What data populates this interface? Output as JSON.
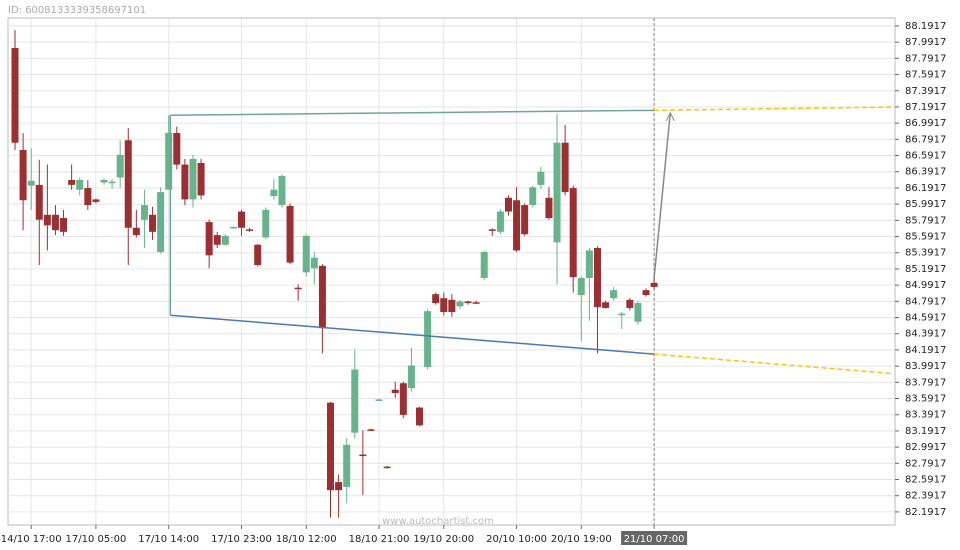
{
  "chart_data": {
    "type": "candlestick",
    "id_label": "ID: 6008133339358697101",
    "watermark": "www.autochartist.com",
    "up_color": "#66b38c",
    "down_color": "#9b2f32",
    "grid": true,
    "categories": [
      null,
      null,
      "14/10 17:00",
      null,
      null,
      null,
      null,
      null,
      null,
      null,
      "17/10 05:00",
      null,
      null,
      null,
      null,
      null,
      null,
      null,
      null,
      "17/10 14:00",
      null,
      null,
      null,
      null,
      null,
      null,
      null,
      null,
      "17/10 23:00",
      null,
      null,
      null,
      null,
      null,
      null,
      null,
      "18/10 12:00",
      null,
      null,
      null,
      null,
      null,
      null,
      null,
      null,
      "18/10 21:00",
      null,
      null,
      null,
      null,
      null,
      null,
      null,
      "19/10 20:00",
      null,
      null,
      null,
      null,
      null,
      null,
      null,
      null,
      "20/10 10:00",
      null,
      null,
      null,
      null,
      null,
      null,
      null,
      "20/10 19:00",
      null,
      null,
      null,
      null,
      null,
      null,
      null,
      null,
      "21/10 07:00"
    ],
    "open": [
      87.92,
      86.66,
      86.22,
      86.23,
      85.86,
      85.86,
      85.82,
      86.29,
      86.17,
      86.19,
      86.05,
      86.26,
      86.25,
      86.32,
      86.78,
      85.7,
      85.8,
      85.86,
      85.4,
      86.17,
      86.87,
      86.48,
      86.05,
      86.5,
      85.77,
      85.61,
      85.49,
      85.7,
      85.9,
      85.68,
      85.49,
      85.58,
      86.09,
      85.98,
      85.97,
      84.96,
      85.15,
      85.2,
      85.23,
      83.54,
      82.56,
      82.5,
      83.17,
      82.9,
      83.21,
      83.57,
      82.75,
      83.7,
      83.78,
      83.72,
      83.48,
      83.98,
      84.88,
      84.83,
      84.81,
      84.73,
      84.79,
      84.78,
      85.08,
      85.68,
      85.65,
      86.07,
      86.04,
      85.98,
      85.98,
      86.23,
      86.07,
      85.52,
      86.75,
      86.19,
      84.87,
      85.08,
      85.45,
      84.78,
      84.83,
      84.62,
      84.81,
      84.54,
      84.93,
      85.02
    ],
    "high": [
      88.14,
      86.87,
      86.68,
      86.54,
      86.48,
      85.98,
      85.92,
      86.48,
      86.32,
      86.29,
      86.06,
      86.31,
      86.3,
      86.78,
      86.93,
      85.92,
      86.17,
      85.96,
      86.2,
      87.09,
      86.95,
      86.55,
      86.6,
      86.55,
      85.8,
      85.65,
      85.62,
      85.72,
      85.92,
      85.7,
      85.5,
      85.95,
      86.3,
      86.36,
      86.0,
      85.0,
      85.62,
      85.4,
      85.25,
      83.55,
      82.65,
      83.1,
      84.2,
      83.2,
      83.22,
      83.59,
      82.76,
      83.8,
      83.8,
      84.22,
      83.49,
      84.7,
      84.9,
      84.9,
      84.88,
      84.81,
      84.8,
      84.8,
      85.42,
      85.69,
      85.93,
      86.1,
      86.2,
      86.0,
      86.22,
      86.45,
      86.2,
      87.11,
      86.97,
      86.22,
      85.1,
      85.45,
      85.47,
      84.8,
      84.97,
      84.66,
      84.83,
      84.8,
      84.95,
      85.1
    ],
    "low": [
      86.66,
      85.67,
      85.92,
      85.24,
      85.42,
      85.61,
      85.6,
      86.17,
      86.1,
      85.92,
      86.0,
      86.23,
      86.18,
      86.19,
      85.24,
      85.58,
      85.45,
      85.55,
      85.38,
      86.17,
      86.42,
      85.98,
      85.95,
      86.05,
      85.2,
      85.45,
      85.48,
      85.69,
      85.6,
      85.65,
      85.22,
      85.56,
      86.05,
      85.95,
      85.25,
      84.8,
      85.1,
      85.0,
      84.15,
      82.12,
      82.12,
      82.3,
      83.1,
      82.4,
      83.19,
      83.56,
      82.73,
      83.6,
      83.35,
      83.68,
      83.25,
      83.95,
      84.75,
      84.62,
      84.6,
      84.7,
      84.75,
      84.76,
      85.05,
      85.6,
      85.62,
      85.85,
      85.4,
      85.6,
      85.95,
      86.18,
      85.8,
      85.0,
      86.1,
      84.9,
      84.3,
      84.55,
      84.15,
      84.7,
      84.8,
      84.45,
      84.68,
      84.5,
      84.85,
      84.95
    ],
    "close": [
      86.75,
      86.04,
      86.28,
      85.8,
      85.73,
      85.67,
      85.65,
      86.23,
      86.29,
      85.98,
      86.02,
      86.29,
      86.27,
      86.6,
      85.7,
      85.61,
      85.98,
      85.65,
      86.14,
      86.87,
      86.48,
      86.05,
      86.55,
      86.1,
      85.36,
      85.49,
      85.6,
      85.71,
      85.7,
      85.67,
      85.24,
      85.92,
      86.17,
      86.34,
      85.27,
      84.95,
      85.6,
      85.33,
      84.46,
      82.46,
      82.46,
      83.02,
      83.95,
      82.89,
      83.2,
      83.58,
      82.74,
      83.66,
      83.39,
      84.0,
      83.26,
      84.67,
      84.77,
      84.66,
      84.66,
      84.79,
      84.77,
      84.77,
      85.4,
      85.67,
      85.9,
      85.9,
      85.42,
      85.62,
      86.2,
      86.39,
      85.82,
      86.75,
      86.14,
      85.09,
      85.08,
      85.42,
      84.72,
      84.71,
      84.93,
      84.64,
      84.71,
      84.77,
      84.87,
      84.97
    ],
    "ylim": [
      82.03,
      88.29
    ],
    "yticks": [
      82.1917,
      82.3917,
      82.5917,
      82.7917,
      82.9917,
      83.1917,
      83.3917,
      83.5917,
      83.7917,
      83.9917,
      84.1917,
      84.3917,
      84.5917,
      84.7917,
      84.9917,
      85.1917,
      85.3917,
      85.5917,
      85.7917,
      85.9917,
      86.1917,
      86.3917,
      86.5917,
      86.7917,
      86.9917,
      87.1917,
      87.3917,
      87.5917,
      87.7917,
      87.9917,
      88.1917
    ],
    "pattern_lines": [
      {
        "color": "#6aa898",
        "dashed": false,
        "points": [
          [
            19.2,
            87.09
          ],
          [
            79,
            87.15
          ]
        ]
      },
      {
        "color": "#4a78b0",
        "dashed": false,
        "points": [
          [
            19.2,
            84.62
          ],
          [
            79,
            84.14
          ]
        ]
      },
      {
        "color": "#6aa898",
        "dashed": false,
        "points": [
          [
            19.2,
            87.09
          ],
          [
            19.2,
            84.62
          ]
        ]
      },
      {
        "color": "#f5c518",
        "dashed": true,
        "points": [
          [
            79,
            87.15
          ],
          [
            108.5,
            87.19
          ]
        ]
      },
      {
        "color": "#f5c518",
        "dashed": true,
        "points": [
          [
            79,
            84.14
          ],
          [
            108.5,
            83.9
          ]
        ]
      },
      {
        "color": "#888888",
        "dashed": false,
        "points": [
          [
            79,
            85.08
          ],
          [
            81,
            87.12
          ]
        ]
      }
    ]
  }
}
